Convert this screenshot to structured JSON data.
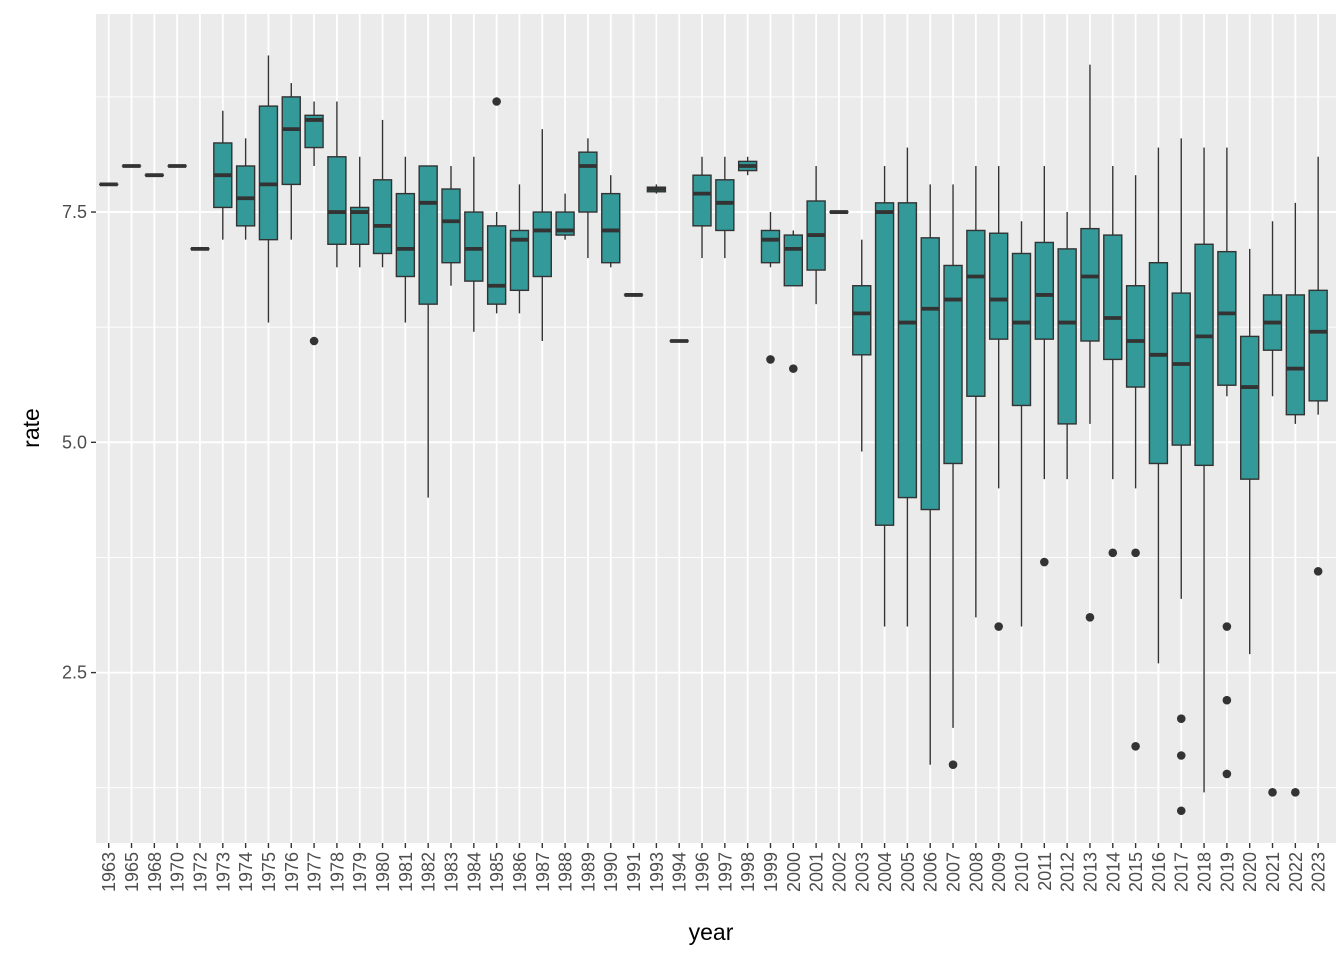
{
  "chart_data": {
    "type": "boxplot",
    "xlabel": "year",
    "ylabel": "rate",
    "ylim": [
      0.65,
      9.65
    ],
    "y_breaks": [
      2.5,
      5.0,
      7.5
    ],
    "y_tick_labels": [
      "2.5",
      "5.0",
      "7.5"
    ],
    "grid": true,
    "panel_background": "#EBEBEB",
    "grid_color": "#FFFFFF",
    "box_fill": "#339999",
    "line_color": "#333333",
    "categories": [
      "1963",
      "1965",
      "1968",
      "1970",
      "1972",
      "1973",
      "1974",
      "1975",
      "1976",
      "1977",
      "1978",
      "1979",
      "1980",
      "1981",
      "1982",
      "1983",
      "1984",
      "1985",
      "1986",
      "1987",
      "1988",
      "1989",
      "1990",
      "1991",
      "1993",
      "1994",
      "1996",
      "1997",
      "1998",
      "1999",
      "2000",
      "2001",
      "2002",
      "2003",
      "2004",
      "2005",
      "2006",
      "2007",
      "2008",
      "2009",
      "2010",
      "2011",
      "2012",
      "2013",
      "2014",
      "2015",
      "2016",
      "2017",
      "2018",
      "2019",
      "2020",
      "2021",
      "2022",
      "2023"
    ],
    "boxes": [
      {
        "year": "1963",
        "lower": 7.8,
        "q1": 7.8,
        "median": 7.8,
        "q3": 7.8,
        "upper": 7.8,
        "outliers": []
      },
      {
        "year": "1965",
        "lower": 8.0,
        "q1": 8.0,
        "median": 8.0,
        "q3": 8.0,
        "upper": 8.0,
        "outliers": []
      },
      {
        "year": "1968",
        "lower": 7.9,
        "q1": 7.9,
        "median": 7.9,
        "q3": 7.9,
        "upper": 7.9,
        "outliers": []
      },
      {
        "year": "1970",
        "lower": 8.0,
        "q1": 8.0,
        "median": 8.0,
        "q3": 8.0,
        "upper": 8.0,
        "outliers": []
      },
      {
        "year": "1972",
        "lower": 7.1,
        "q1": 7.1,
        "median": 7.1,
        "q3": 7.1,
        "upper": 7.1,
        "outliers": []
      },
      {
        "year": "1973",
        "lower": 7.2,
        "q1": 7.55,
        "median": 7.9,
        "q3": 8.25,
        "upper": 8.6,
        "outliers": []
      },
      {
        "year": "1974",
        "lower": 7.2,
        "q1": 7.35,
        "median": 7.65,
        "q3": 8.0,
        "upper": 8.3,
        "outliers": []
      },
      {
        "year": "1975",
        "lower": 6.3,
        "q1": 7.2,
        "median": 7.8,
        "q3": 8.65,
        "upper": 9.2,
        "outliers": []
      },
      {
        "year": "1976",
        "lower": 7.2,
        "q1": 7.8,
        "median": 8.4,
        "q3": 8.75,
        "upper": 8.9,
        "outliers": []
      },
      {
        "year": "1977",
        "lower": 8.0,
        "q1": 8.2,
        "median": 8.5,
        "q3": 8.55,
        "upper": 8.7,
        "outliers": [
          6.1
        ]
      },
      {
        "year": "1978",
        "lower": 6.9,
        "q1": 7.15,
        "median": 7.5,
        "q3": 8.1,
        "upper": 8.7,
        "outliers": []
      },
      {
        "year": "1979",
        "lower": 6.9,
        "q1": 7.15,
        "median": 7.5,
        "q3": 7.55,
        "upper": 8.1,
        "outliers": []
      },
      {
        "year": "1980",
        "lower": 6.9,
        "q1": 7.05,
        "median": 7.35,
        "q3": 7.85,
        "upper": 8.5,
        "outliers": []
      },
      {
        "year": "1981",
        "lower": 6.3,
        "q1": 6.8,
        "median": 7.1,
        "q3": 7.7,
        "upper": 8.1,
        "outliers": []
      },
      {
        "year": "1982",
        "lower": 4.4,
        "q1": 6.5,
        "median": 7.6,
        "q3": 8.0,
        "upper": 8.0,
        "outliers": []
      },
      {
        "year": "1983",
        "lower": 6.7,
        "q1": 6.95,
        "median": 7.4,
        "q3": 7.75,
        "upper": 8.0,
        "outliers": []
      },
      {
        "year": "1984",
        "lower": 6.2,
        "q1": 6.75,
        "median": 7.1,
        "q3": 7.5,
        "upper": 8.1,
        "outliers": []
      },
      {
        "year": "1985",
        "lower": 6.4,
        "q1": 6.5,
        "median": 6.7,
        "q3": 7.35,
        "upper": 7.5,
        "outliers": [
          8.7
        ]
      },
      {
        "year": "1986",
        "lower": 6.4,
        "q1": 6.65,
        "median": 7.2,
        "q3": 7.3,
        "upper": 7.8,
        "outliers": []
      },
      {
        "year": "1987",
        "lower": 6.1,
        "q1": 6.8,
        "median": 7.3,
        "q3": 7.5,
        "upper": 8.4,
        "outliers": []
      },
      {
        "year": "1988",
        "lower": 7.2,
        "q1": 7.25,
        "median": 7.3,
        "q3": 7.5,
        "upper": 7.7,
        "outliers": []
      },
      {
        "year": "1989",
        "lower": 7.0,
        "q1": 7.5,
        "median": 8.0,
        "q3": 8.15,
        "upper": 8.3,
        "outliers": []
      },
      {
        "year": "1990",
        "lower": 6.9,
        "q1": 6.95,
        "median": 7.3,
        "q3": 7.7,
        "upper": 7.9,
        "outliers": []
      },
      {
        "year": "1991",
        "lower": 6.6,
        "q1": 6.6,
        "median": 6.6,
        "q3": 6.6,
        "upper": 6.6,
        "outliers": []
      },
      {
        "year": "1993",
        "lower": 7.7,
        "q1": 7.72,
        "median": 7.75,
        "q3": 7.77,
        "upper": 7.8,
        "outliers": []
      },
      {
        "year": "1994",
        "lower": 6.1,
        "q1": 6.1,
        "median": 6.1,
        "q3": 6.1,
        "upper": 6.1,
        "outliers": []
      },
      {
        "year": "1996",
        "lower": 7.0,
        "q1": 7.35,
        "median": 7.7,
        "q3": 7.9,
        "upper": 8.1,
        "outliers": []
      },
      {
        "year": "1997",
        "lower": 7.0,
        "q1": 7.3,
        "median": 7.6,
        "q3": 7.85,
        "upper": 8.1,
        "outliers": []
      },
      {
        "year": "1998",
        "lower": 7.9,
        "q1": 7.95,
        "median": 8.0,
        "q3": 8.05,
        "upper": 8.1,
        "outliers": []
      },
      {
        "year": "1999",
        "lower": 6.9,
        "q1": 6.95,
        "median": 7.2,
        "q3": 7.3,
        "upper": 7.5,
        "outliers": [
          5.9
        ]
      },
      {
        "year": "2000",
        "lower": 6.7,
        "q1": 6.7,
        "median": 7.1,
        "q3": 7.25,
        "upper": 7.3,
        "outliers": [
          5.8
        ]
      },
      {
        "year": "2001",
        "lower": 6.5,
        "q1": 6.87,
        "median": 7.25,
        "q3": 7.62,
        "upper": 8.0,
        "outliers": []
      },
      {
        "year": "2002",
        "lower": 7.5,
        "q1": 7.5,
        "median": 7.5,
        "q3": 7.5,
        "upper": 7.5,
        "outliers": []
      },
      {
        "year": "2003",
        "lower": 4.9,
        "q1": 5.95,
        "median": 6.4,
        "q3": 6.7,
        "upper": 7.2,
        "outliers": []
      },
      {
        "year": "2004",
        "lower": 3.0,
        "q1": 4.1,
        "median": 7.5,
        "q3": 7.6,
        "upper": 8.0,
        "outliers": []
      },
      {
        "year": "2005",
        "lower": 3.0,
        "q1": 4.4,
        "median": 6.3,
        "q3": 7.6,
        "upper": 8.2,
        "outliers": []
      },
      {
        "year": "2006",
        "lower": 1.5,
        "q1": 4.27,
        "median": 6.45,
        "q3": 7.22,
        "upper": 7.8,
        "outliers": []
      },
      {
        "year": "2007",
        "lower": 1.9,
        "q1": 4.77,
        "median": 6.55,
        "q3": 6.92,
        "upper": 7.8,
        "outliers": [
          1.5
        ]
      },
      {
        "year": "2008",
        "lower": 3.1,
        "q1": 5.5,
        "median": 6.8,
        "q3": 7.3,
        "upper": 8.0,
        "outliers": []
      },
      {
        "year": "2009",
        "lower": 4.5,
        "q1": 6.12,
        "median": 6.55,
        "q3": 7.27,
        "upper": 8.0,
        "outliers": [
          3.0
        ]
      },
      {
        "year": "2010",
        "lower": 3.0,
        "q1": 5.4,
        "median": 6.3,
        "q3": 7.05,
        "upper": 7.4,
        "outliers": []
      },
      {
        "year": "2011",
        "lower": 4.6,
        "q1": 6.12,
        "median": 6.6,
        "q3": 7.17,
        "upper": 8.0,
        "outliers": [
          3.7
        ]
      },
      {
        "year": "2012",
        "lower": 4.6,
        "q1": 5.2,
        "median": 6.3,
        "q3": 7.1,
        "upper": 7.5,
        "outliers": []
      },
      {
        "year": "2013",
        "lower": 5.2,
        "q1": 6.1,
        "median": 6.8,
        "q3": 7.32,
        "upper": 9.1,
        "outliers": [
          3.1
        ]
      },
      {
        "year": "2014",
        "lower": 4.6,
        "q1": 5.9,
        "median": 6.35,
        "q3": 7.25,
        "upper": 8.0,
        "outliers": [
          3.8
        ]
      },
      {
        "year": "2015",
        "lower": 4.5,
        "q1": 5.6,
        "median": 6.1,
        "q3": 6.7,
        "upper": 7.9,
        "outliers": [
          3.8,
          1.7
        ]
      },
      {
        "year": "2016",
        "lower": 2.6,
        "q1": 4.77,
        "median": 5.95,
        "q3": 6.95,
        "upper": 8.2,
        "outliers": []
      },
      {
        "year": "2017",
        "lower": 3.3,
        "q1": 4.97,
        "median": 5.85,
        "q3": 6.62,
        "upper": 8.3,
        "outliers": [
          2.0,
          1.6,
          1.0
        ]
      },
      {
        "year": "2018",
        "lower": 1.2,
        "q1": 4.75,
        "median": 6.15,
        "q3": 7.15,
        "upper": 8.2,
        "outliers": []
      },
      {
        "year": "2019",
        "lower": 5.5,
        "q1": 5.62,
        "median": 6.4,
        "q3": 7.07,
        "upper": 8.2,
        "outliers": [
          3.0,
          2.2,
          1.4
        ]
      },
      {
        "year": "2020",
        "lower": 2.7,
        "q1": 4.6,
        "median": 5.6,
        "q3": 6.15,
        "upper": 7.1,
        "outliers": []
      },
      {
        "year": "2021",
        "lower": 5.5,
        "q1": 6.0,
        "median": 6.3,
        "q3": 6.6,
        "upper": 7.4,
        "outliers": [
          1.2
        ]
      },
      {
        "year": "2022",
        "lower": 5.2,
        "q1": 5.3,
        "median": 5.8,
        "q3": 6.6,
        "upper": 7.6,
        "outliers": [
          1.2
        ]
      },
      {
        "year": "2023",
        "lower": 5.3,
        "q1": 5.45,
        "median": 6.2,
        "q3": 6.65,
        "upper": 8.1,
        "outliers": [
          3.6
        ]
      }
    ]
  }
}
